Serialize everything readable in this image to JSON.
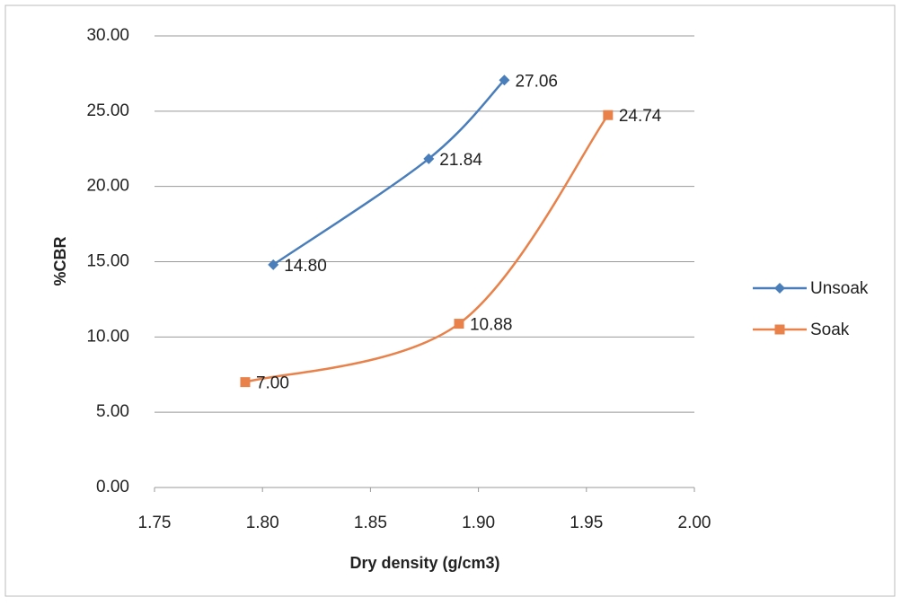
{
  "chart_data": {
    "type": "scatter-smooth",
    "x_label": "Dry density (g/cm3)",
    "y_label": "%CBR",
    "series": [
      {
        "name": "Unsoak",
        "color": "#4a7ebb",
        "marker": "diamond",
        "x": [
          1.805,
          1.877,
          1.912
        ],
        "values": [
          14.8,
          21.84,
          27.06
        ],
        "value_labels": [
          "14.80",
          "21.84",
          "27.06"
        ]
      },
      {
        "name": "Soak",
        "color": "#e8824a",
        "marker": "square",
        "x": [
          1.792,
          1.891,
          1.96
        ],
        "values": [
          7,
          10.88,
          24.74
        ],
        "value_labels": [
          "7.00",
          "10.88",
          "24.74"
        ]
      }
    ],
    "xlim": [
      1.75,
      2.0
    ],
    "xticks": [
      1.75,
      {
        "value": 1.8,
        "label": "1.80"
      },
      1.85,
      {
        "value": 1.9,
        "label": "1.90"
      },
      1.95,
      {
        "value": 2.0,
        "label": "2.00"
      }
    ],
    "ylim": [
      0,
      30
    ],
    "yticks": [
      {
        "value": 0,
        "label": "0.00"
      },
      {
        "value": 5,
        "label": "5.00"
      },
      {
        "value": 10,
        "label": "10.00"
      },
      {
        "value": 15,
        "label": "15.00"
      },
      {
        "value": 20,
        "label": "20.00"
      },
      {
        "value": 25,
        "label": "25.00"
      },
      {
        "value": 30,
        "label": "30.00"
      }
    ],
    "grid": true,
    "legend": "right"
  }
}
